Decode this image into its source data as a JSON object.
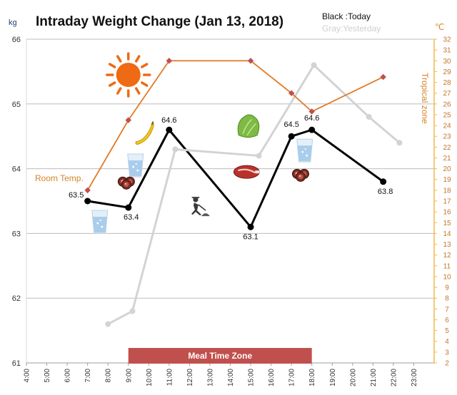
{
  "chart_data": {
    "type": "line",
    "title": "Intraday Weight Change (Jan 13, 2018)",
    "legend": {
      "today": "Black :Today",
      "yesterday": "Gray:Yesterday"
    },
    "y_unit": "kg",
    "y2_unit": "℃",
    "ylim": [
      61,
      66
    ],
    "y_ticks": [
      "61",
      "62",
      "63",
      "64",
      "65",
      "66"
    ],
    "y2lim": [
      2,
      32
    ],
    "y2_ticks": [
      "2",
      "3",
      "4",
      "5",
      "6",
      "7",
      "8",
      "9",
      "10",
      "11",
      "12",
      "13",
      "14",
      "15",
      "16",
      "17",
      "18",
      "19",
      "20",
      "21",
      "22",
      "23",
      "24",
      "25",
      "26",
      "27",
      "28",
      "29",
      "30",
      "31",
      "32"
    ],
    "x_ticks": [
      "4:00",
      "5:00",
      "6:00",
      "7:00",
      "8:00",
      "9:00",
      "10:00",
      "11:00",
      "12:00",
      "13:00",
      "14:00",
      "15:00",
      "16:00",
      "17:00",
      "18:00",
      "19:00",
      "20:00",
      "21:00",
      "22:00",
      "23:00"
    ],
    "grid": true,
    "series": [
      {
        "name": "Today",
        "color": "#000000",
        "axis": "kg",
        "x": [
          7.0,
          9.0,
          11.0,
          15.0,
          17.0,
          18.0,
          21.5
        ],
        "y": [
          63.5,
          63.4,
          64.6,
          63.1,
          64.5,
          64.6,
          63.8
        ],
        "labels": [
          "63.5",
          "63.4",
          "64.6",
          "63.1",
          "64.5",
          "64.6",
          "63.8"
        ]
      },
      {
        "name": "Yesterday",
        "color": "#d3d3d3",
        "axis": "kg",
        "x": [
          8.0,
          9.2,
          11.3,
          15.4,
          18.1,
          20.8,
          22.3
        ],
        "y": [
          61.6,
          61.8,
          64.3,
          64.2,
          65.6,
          64.8,
          64.4
        ]
      },
      {
        "name": "Temperature",
        "color": "#e07b28",
        "axis": "celsius",
        "x": [
          7.0,
          9.0,
          11.0,
          15.0,
          17.0,
          18.0,
          21.5
        ],
        "y": [
          18.0,
          24.5,
          30.0,
          30.0,
          27.0,
          25.3,
          28.5
        ]
      }
    ],
    "annotations": {
      "room_temp": "Room Temp.",
      "tropical_zone": "Tropical zone",
      "meal_zone": "Meal Time Zone",
      "meal_zone_from": 9.0,
      "meal_zone_to": 18.0
    },
    "icons": [
      {
        "name": "sun-icon",
        "x": 9.0,
        "y": 65.45
      },
      {
        "name": "banana-icon",
        "x": 9.8,
        "y": 64.55
      },
      {
        "name": "water-glass-icon",
        "x": 9.35,
        "y": 64.05
      },
      {
        "name": "sausage-icon",
        "x": 8.9,
        "y": 63.8
      },
      {
        "name": "water-glass-icon",
        "x": 7.6,
        "y": 63.18
      },
      {
        "name": "lettuce-icon",
        "x": 14.9,
        "y": 64.65
      },
      {
        "name": "steak-icon",
        "x": 14.8,
        "y": 63.95
      },
      {
        "name": "gardening-person-icon",
        "x": 12.3,
        "y": 63.4
      },
      {
        "name": "water-glass-icon",
        "x": 17.65,
        "y": 64.28
      },
      {
        "name": "sausage-icon",
        "x": 17.45,
        "y": 63.92
      }
    ]
  }
}
